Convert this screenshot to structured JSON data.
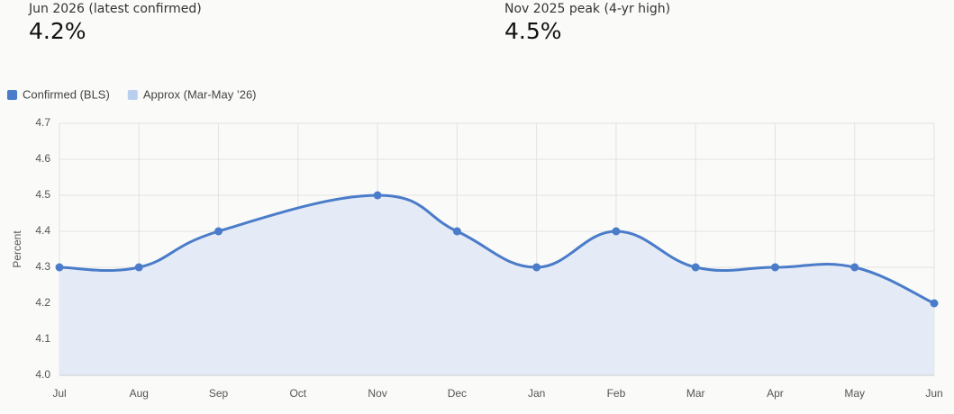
{
  "stats": [
    {
      "label": "Jun 2026 (latest confirmed)",
      "value": "4.2%"
    },
    {
      "label": "Nov 2025 peak (4-yr high)",
      "value": "4.5%"
    }
  ],
  "chart_data": {
    "type": "line",
    "legend": [
      {
        "name": "Confirmed (BLS)",
        "color": "#4a7cc9"
      },
      {
        "name": "Approx (Mar-May ’26)",
        "color": "#b9cff0"
      }
    ],
    "y_label": "Percent",
    "categories": [
      "Jul",
      "Aug",
      "Sep",
      "Oct",
      "Nov",
      "Dec",
      "Jan",
      "Feb",
      "Mar",
      "Apr",
      "May",
      "Jun"
    ],
    "series": [
      {
        "color": "#4a7cc9",
        "fill": "#e5ebf6",
        "values": [
          4.3,
          4.3,
          4.4,
          null,
          4.5,
          4.4,
          4.3,
          4.4,
          4.3,
          4.3,
          4.3,
          4.2
        ]
      }
    ],
    "span_gaps": true,
    "ylim": [
      4.0,
      4.7
    ],
    "yticks": [
      {
        "value": 4.0,
        "label": "4.0"
      },
      4.1,
      4.2,
      4.3,
      4.4,
      4.5,
      4.6,
      4.7
    ],
    "grid": true
  }
}
